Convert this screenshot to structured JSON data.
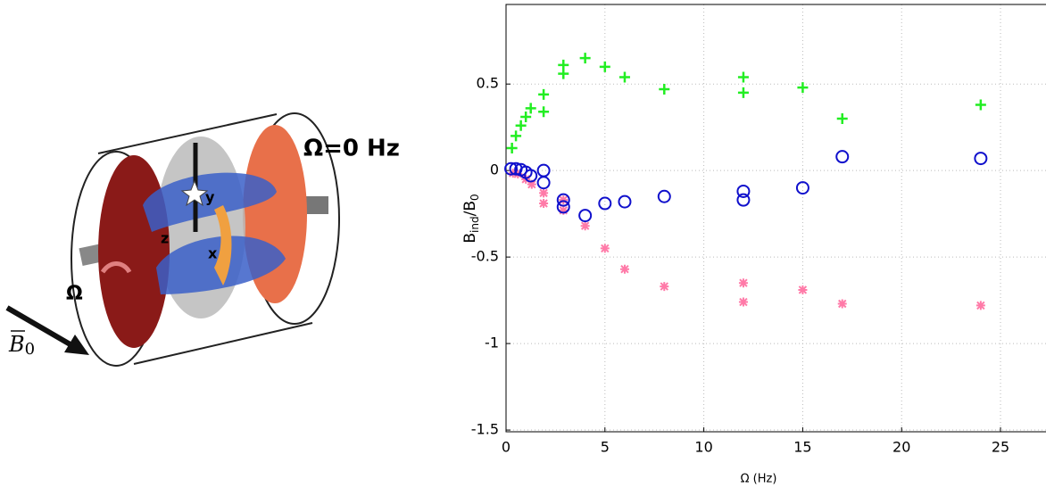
{
  "diagram": {
    "speed_label": "Ω=0 Hz",
    "rotation_label": "Ω",
    "axis_labels": [
      "y",
      "z",
      "x"
    ],
    "field_label": [
      "B",
      "0"
    ]
  },
  "chart_data": {
    "type": "scatter",
    "xlabel": "Ω (Hz)",
    "ylabel": [
      "B",
      "ind",
      "/B",
      "0"
    ],
    "xlim": [
      0,
      27.3
    ],
    "ylim": [
      -1.51,
      0.96
    ],
    "xticks": [
      0,
      5,
      10,
      15,
      20,
      25
    ],
    "yticks": [
      -1.5,
      -1,
      -0.5,
      0,
      0.5
    ],
    "grid": true,
    "series": [
      {
        "color": "#22ee22",
        "marker": "plus",
        "x": [
          0.3,
          0.5,
          0.75,
          1,
          1.25,
          1.9,
          1.9,
          2.9,
          2.9,
          4,
          5,
          6,
          8,
          12,
          12,
          15,
          17,
          24
        ],
        "values": [
          0.13,
          0.2,
          0.26,
          0.31,
          0.36,
          0.44,
          0.34,
          0.61,
          0.56,
          0.65,
          0.6,
          0.54,
          0.47,
          0.54,
          0.45,
          0.48,
          0.3,
          0.38
        ]
      },
      {
        "color": "#ff7aa8",
        "marker": "star",
        "x": [
          0.35,
          0.6,
          1,
          1.3,
          1.9,
          1.9,
          2.9,
          2.9,
          4,
          5,
          6,
          8,
          12,
          12,
          15,
          17,
          24
        ],
        "values": [
          -0.015,
          -0.02,
          -0.05,
          -0.08,
          -0.13,
          -0.19,
          -0.17,
          -0.23,
          -0.32,
          -0.45,
          -0.57,
          -0.67,
          -0.65,
          -0.76,
          -0.69,
          -0.77,
          -0.78
        ]
      },
      {
        "color": "#1010cc",
        "marker": "circle",
        "x": [
          0.25,
          0.5,
          0.75,
          1,
          1.25,
          1.9,
          1.9,
          2.9,
          2.9,
          4,
          5,
          6,
          8,
          12,
          12,
          15,
          17,
          24
        ],
        "values": [
          0.01,
          0.01,
          0.005,
          -0.01,
          -0.03,
          0.0,
          -0.07,
          -0.17,
          -0.21,
          -0.26,
          -0.19,
          -0.18,
          -0.15,
          -0.12,
          -0.17,
          -0.1,
          0.08,
          0.07
        ]
      }
    ]
  }
}
